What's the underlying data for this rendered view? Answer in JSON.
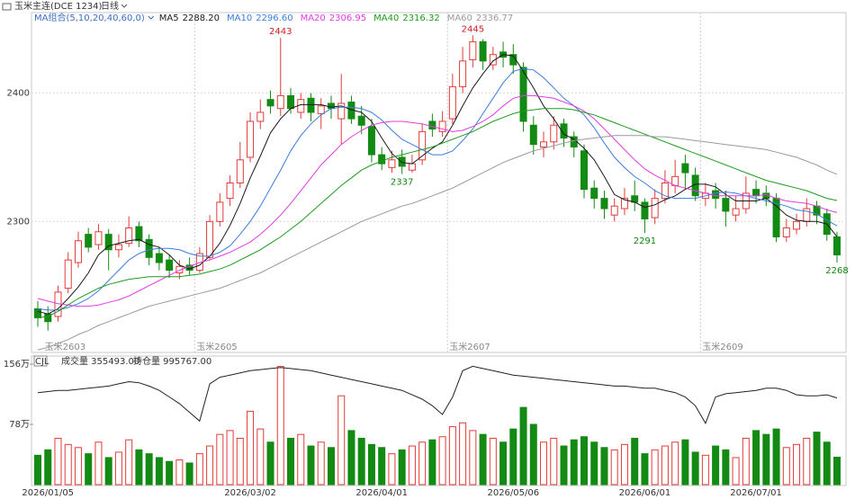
{
  "header": {
    "symbol": "玉米主连(DCE 1234)",
    "period": "日线"
  },
  "chart_data": [
    {
      "type": "candlestick",
      "ma_title": "MA组合(5,10,20,40,60,0)",
      "contracts": [
        null,
        "玉米2603",
        null,
        null,
        null,
        null,
        null,
        null,
        null,
        null,
        null,
        null,
        null,
        null,
        null,
        null,
        "玉米2605",
        null,
        null,
        null,
        null,
        null,
        null,
        null,
        null,
        null,
        null,
        null,
        null,
        null,
        null,
        null,
        null,
        null,
        null,
        null,
        null,
        null,
        null,
        null,
        null,
        "玉米2607",
        null,
        null,
        null,
        null,
        null,
        null,
        null,
        null,
        null,
        null,
        null,
        null,
        null,
        null,
        null,
        null,
        null,
        null,
        null,
        null,
        null,
        null,
        null,
        null,
        "玉米2609",
        null,
        null,
        null,
        null,
        null,
        null,
        null,
        null,
        null,
        null,
        null,
        null,
        null
      ],
      "open": [
        2232,
        2228,
        2226,
        2248,
        2268,
        2290,
        2282,
        2290,
        2278,
        2283,
        2296,
        2286,
        2275,
        2270,
        2260,
        2266,
        2262,
        2272,
        2300,
        2318,
        2330,
        2350,
        2378,
        2395,
        2388,
        2398,
        2385,
        2396,
        2384,
        2392,
        2380,
        2393,
        2382,
        2374,
        2352,
        2342,
        2350,
        2340,
        2348,
        2378,
        2370,
        2380,
        2405,
        2426,
        2440,
        2422,
        2432,
        2430,
        2420,
        2375,
        2358,
        2362,
        2376,
        2366,
        2355,
        2326,
        2318,
        2305,
        2310,
        2320,
        2315,
        2303,
        2318,
        2328,
        2345,
        2336,
        2318,
        2324,
        2318,
        2305,
        2310,
        2325,
        2322,
        2318,
        2288,
        2294,
        2300,
        2312,
        2306,
        2288
      ],
      "high": [
        2238,
        2234,
        2250,
        2276,
        2292,
        2295,
        2298,
        2294,
        2290,
        2304,
        2300,
        2290,
        2280,
        2274,
        2270,
        2272,
        2280,
        2305,
        2322,
        2336,
        2362,
        2385,
        2395,
        2402,
        2443,
        2404,
        2400,
        2400,
        2396,
        2398,
        2415,
        2398,
        2390,
        2380,
        2358,
        2355,
        2356,
        2352,
        2376,
        2384,
        2386,
        2415,
        2436,
        2445,
        2442,
        2436,
        2440,
        2438,
        2424,
        2382,
        2370,
        2382,
        2380,
        2370,
        2360,
        2332,
        2324,
        2318,
        2326,
        2332,
        2318,
        2325,
        2340,
        2348,
        2352,
        2342,
        2330,
        2330,
        2324,
        2320,
        2335,
        2332,
        2328,
        2322,
        2302,
        2306,
        2318,
        2316,
        2310,
        2292
      ],
      "low": [
        2218,
        2215,
        2222,
        2244,
        2264,
        2276,
        2278,
        2262,
        2272,
        2280,
        2280,
        2266,
        2262,
        2256,
        2255,
        2258,
        2260,
        2270,
        2296,
        2312,
        2326,
        2346,
        2372,
        2384,
        2382,
        2384,
        2380,
        2378,
        2372,
        2380,
        2360,
        2376,
        2368,
        2346,
        2340,
        2338,
        2337,
        2338,
        2344,
        2366,
        2366,
        2376,
        2400,
        2420,
        2418,
        2418,
        2420,
        2415,
        2370,
        2352,
        2350,
        2356,
        2358,
        2350,
        2318,
        2310,
        2302,
        2300,
        2305,
        2308,
        2291,
        2298,
        2314,
        2322,
        2325,
        2316,
        2312,
        2310,
        2296,
        2300,
        2306,
        2314,
        2312,
        2284,
        2284,
        2290,
        2296,
        2298,
        2285,
        2268
      ],
      "close": [
        2225,
        2222,
        2245,
        2270,
        2285,
        2280,
        2292,
        2278,
        2282,
        2295,
        2285,
        2272,
        2268,
        2262,
        2265,
        2262,
        2275,
        2300,
        2315,
        2330,
        2348,
        2378,
        2385,
        2390,
        2398,
        2388,
        2395,
        2385,
        2390,
        2388,
        2392,
        2380,
        2375,
        2352,
        2345,
        2348,
        2343,
        2345,
        2370,
        2372,
        2378,
        2405,
        2425,
        2440,
        2425,
        2430,
        2428,
        2422,
        2378,
        2360,
        2362,
        2375,
        2365,
        2358,
        2325,
        2318,
        2310,
        2312,
        2318,
        2315,
        2302,
        2318,
        2330,
        2335,
        2338,
        2320,
        2322,
        2318,
        2308,
        2310,
        2322,
        2320,
        2318,
        2288,
        2295,
        2300,
        2310,
        2305,
        2290,
        2274
      ],
      "up_color": "#e23b3b",
      "down_color": "#138a13",
      "ylim": [
        2198,
        2462
      ],
      "yticks": [
        2300,
        2400
      ],
      "grid": true,
      "annotations": [
        2443,
        2445,
        2337,
        2291,
        2268
      ],
      "series": [
        {
          "name": "MA5",
          "color": "#1a1a1a",
          "last_label": "2288.20",
          "values": [
            2230,
            2228,
            2232,
            2240,
            2249,
            2260,
            2274,
            2281,
            2283,
            2285,
            2286,
            2282,
            2280,
            2274,
            2266,
            2263,
            2266,
            2273,
            2283,
            2297,
            2314,
            2334,
            2351,
            2369,
            2380,
            2388,
            2391,
            2391,
            2391,
            2389,
            2390,
            2387,
            2385,
            2378,
            2365,
            2353,
            2346,
            2345,
            2351,
            2357,
            2362,
            2375,
            2390,
            2404,
            2415,
            2425,
            2430,
            2429,
            2417,
            2404,
            2390,
            2380,
            2368,
            2364,
            2357,
            2348,
            2335,
            2321,
            2317,
            2315,
            2311,
            2313,
            2317,
            2320,
            2325,
            2329,
            2329,
            2327,
            2321,
            2316,
            2316,
            2316,
            2318,
            2312,
            2305,
            2301,
            2300,
            2300,
            2298,
            2288.2
          ]
        },
        {
          "name": "MA10",
          "color": "#3b7ddd",
          "last_label": "2296.60",
          "values": [
            2232,
            2231,
            2231,
            2233,
            2236,
            2240,
            2246,
            2254,
            2262,
            2270,
            2275,
            2278,
            2279,
            2279,
            2278,
            2275,
            2273,
            2273,
            2276,
            2281,
            2290,
            2300,
            2312,
            2326,
            2340,
            2355,
            2367,
            2376,
            2383,
            2388,
            2389,
            2389,
            2388,
            2385,
            2379,
            2371,
            2364,
            2360,
            2356,
            2352,
            2352,
            2355,
            2363,
            2372,
            2384,
            2396,
            2408,
            2417,
            2419,
            2418,
            2412,
            2404,
            2396,
            2390,
            2383,
            2373,
            2361,
            2350,
            2342,
            2335,
            2330,
            2324,
            2320,
            2318,
            2318,
            2318,
            2320,
            2322,
            2323,
            2322,
            2320,
            2318,
            2316,
            2314,
            2312,
            2309,
            2308,
            2306,
            2301,
            2296.6
          ]
        },
        {
          "name": "MA20",
          "color": "#e03ce0",
          "last_label": "2306.95",
          "values": [
            2240,
            2238,
            2236,
            2235,
            2234,
            2234,
            2235,
            2237,
            2239,
            2242,
            2246,
            2250,
            2254,
            2258,
            2262,
            2265,
            2268,
            2270,
            2273,
            2276,
            2280,
            2284,
            2290,
            2297,
            2305,
            2314,
            2324,
            2334,
            2344,
            2352,
            2360,
            2366,
            2371,
            2375,
            2377,
            2378,
            2378,
            2377,
            2376,
            2374,
            2372,
            2370,
            2371,
            2374,
            2378,
            2383,
            2390,
            2396,
            2398,
            2398,
            2397,
            2396,
            2393,
            2390,
            2386,
            2380,
            2372,
            2364,
            2356,
            2348,
            2341,
            2336,
            2332,
            2328,
            2326,
            2324,
            2322,
            2320,
            2320,
            2320,
            2320,
            2320,
            2321,
            2318,
            2316,
            2315,
            2314,
            2312,
            2309,
            2306.95
          ]
        },
        {
          "name": "MA40",
          "color": "#1f9a1f",
          "last_label": "2316.32",
          "values": [
            2225,
            2226,
            2230,
            2235,
            2240,
            2244,
            2248,
            2251,
            2253,
            2255,
            2256,
            2257,
            2257,
            2257,
            2257,
            2258,
            2259,
            2261,
            2263,
            2266,
            2270,
            2274,
            2278,
            2283,
            2288,
            2294,
            2300,
            2307,
            2314,
            2321,
            2328,
            2334,
            2340,
            2344,
            2347,
            2350,
            2352,
            2354,
            2356,
            2358,
            2361,
            2364,
            2367,
            2370,
            2374,
            2378,
            2381,
            2384,
            2386,
            2387,
            2388,
            2388,
            2388,
            2387,
            2385,
            2383,
            2380,
            2377,
            2374,
            2371,
            2368,
            2365,
            2362,
            2359,
            2356,
            2353,
            2350,
            2347,
            2344,
            2341,
            2338,
            2335,
            2332,
            2330,
            2328,
            2326,
            2324,
            2321,
            2318,
            2316.32
          ]
        },
        {
          "name": "MA60",
          "color": "#9a9a9a",
          "last_label": "2336.77",
          "values": [
            2200,
            2202,
            2205,
            2208,
            2212,
            2215,
            2219,
            2222,
            2225,
            2228,
            2231,
            2234,
            2236,
            2238,
            2240,
            2242,
            2244,
            2246,
            2248,
            2251,
            2254,
            2257,
            2260,
            2264,
            2268,
            2272,
            2276,
            2280,
            2284,
            2288,
            2292,
            2296,
            2300,
            2303,
            2306,
            2309,
            2312,
            2314,
            2317,
            2320,
            2323,
            2326,
            2330,
            2334,
            2338,
            2342,
            2346,
            2349,
            2352,
            2355,
            2357,
            2359,
            2361,
            2363,
            2364,
            2365,
            2366,
            2367,
            2367,
            2367,
            2367,
            2366,
            2366,
            2365,
            2364,
            2363,
            2362,
            2361,
            2360,
            2359,
            2358,
            2357,
            2356,
            2354,
            2352,
            2350,
            2347,
            2344,
            2340,
            2336.77
          ]
        }
      ]
    },
    {
      "type": "bar",
      "indicator": "CJL",
      "volume_label": "成交量 355493.00",
      "oi_label": "持仓量 995767.00",
      "categories": [
        null,
        "2026/01/05",
        null,
        null,
        null,
        null,
        null,
        null,
        null,
        null,
        null,
        null,
        null,
        null,
        null,
        null,
        null,
        null,
        null,
        null,
        null,
        "2026/03/02",
        null,
        null,
        null,
        null,
        null,
        null,
        null,
        null,
        null,
        null,
        null,
        null,
        "2026/04/01",
        null,
        null,
        null,
        null,
        null,
        null,
        null,
        null,
        null,
        null,
        null,
        null,
        "2026/05/06",
        null,
        null,
        null,
        null,
        null,
        null,
        null,
        null,
        null,
        null,
        null,
        null,
        "2026/06/01",
        null,
        null,
        null,
        null,
        null,
        null,
        null,
        null,
        null,
        null,
        "2026/07/01",
        null,
        null,
        null,
        null,
        null,
        null,
        null,
        null
      ],
      "values": [
        38,
        45,
        60,
        52,
        48,
        40,
        55,
        35,
        42,
        58,
        45,
        40,
        35,
        30,
        32,
        28,
        40,
        50,
        65,
        70,
        60,
        95,
        72,
        55,
        153,
        60,
        65,
        50,
        55,
        48,
        115,
        70,
        60,
        52,
        48,
        40,
        45,
        50,
        55,
        58,
        62,
        75,
        80,
        70,
        65,
        60,
        55,
        72,
        100,
        78,
        55,
        60,
        50,
        58,
        62,
        55,
        48,
        45,
        52,
        60,
        40,
        45,
        50,
        55,
        58,
        42,
        38,
        50,
        45,
        35,
        60,
        70,
        65,
        72,
        48,
        52,
        60,
        68,
        55,
        35.55
      ],
      "ylim": [
        0,
        156
      ],
      "yticks": [
        {
          "value": 78,
          "label": "78万"
        },
        {
          "value": 156,
          "label": "156万"
        }
      ],
      "y2lim": [
        60,
        115
      ],
      "series": [
        {
          "name": "持仓量",
          "color": "#222222",
          "axis": "y2",
          "values": [
            102,
            102.5,
            103,
            103,
            103.5,
            104,
            104.5,
            105,
            106,
            107,
            106.5,
            105,
            103,
            100,
            97,
            93,
            89,
            106,
            109,
            110,
            111,
            112,
            112.5,
            113,
            113.5,
            113,
            112.5,
            112,
            111,
            110,
            109,
            108,
            107,
            106,
            105,
            104,
            103,
            101,
            99,
            96,
            92,
            100,
            112,
            114,
            113,
            112,
            111,
            110,
            109.5,
            109,
            108.5,
            108,
            107.5,
            107,
            106.5,
            106,
            105.5,
            105,
            105,
            104.5,
            104,
            104,
            103,
            102,
            100,
            96,
            88,
            100,
            101.5,
            102,
            102.5,
            103,
            104,
            104,
            103,
            101,
            100.5,
            100.5,
            101,
            99.58
          ]
        }
      ]
    }
  ]
}
